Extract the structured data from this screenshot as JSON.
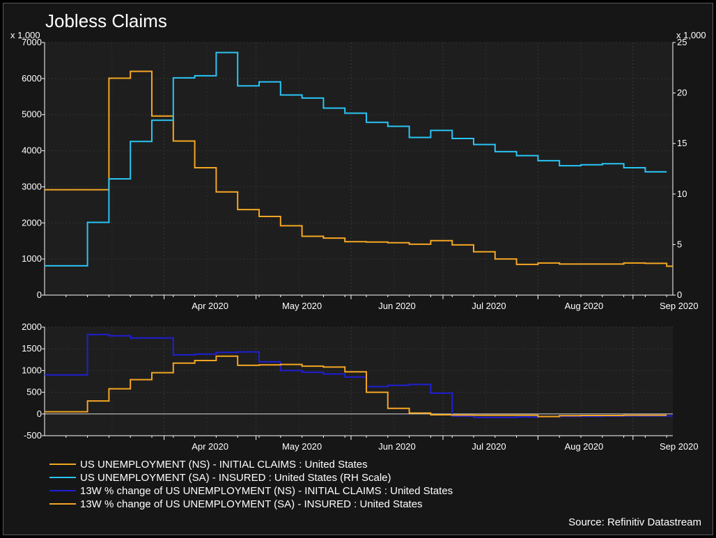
{
  "chart_data": [
    {
      "type": "line",
      "title": "Jobless Claims",
      "y_unit_left": "x 1,000",
      "y_unit_right": "x 1,000",
      "ylim_left": [
        0,
        7000
      ],
      "ylim_right": [
        0,
        25
      ],
      "yticks_left": [
        "0",
        "1000",
        "2000",
        "3000",
        "4000",
        "5000",
        "6000",
        "7000"
      ],
      "yticks_right": [
        "0",
        "5",
        "10",
        "15",
        "20",
        "25"
      ],
      "x_tick_labels": [
        "Apr 2020",
        "May 2020",
        "Jun 2020",
        "Jul 2020",
        "Aug 2020",
        "Sep 2020"
      ],
      "x_tick_dates": [
        "2020-04-01",
        "2020-05-01",
        "2020-06-01",
        "2020-07-01",
        "2020-08-01",
        "2020-09-01"
      ],
      "x_range": [
        "2020-02-22",
        "2020-09-14"
      ],
      "grid": true,
      "series": [
        {
          "name": "US UNEMPLOYMENT (NS) - INITIAL CLAIMS : United States",
          "axis": "left",
          "color": "#f5a623",
          "step": true,
          "x": [
            "2020-02-22",
            "2020-03-14",
            "2020-03-21",
            "2020-03-28",
            "2020-04-04",
            "2020-04-11",
            "2020-04-18",
            "2020-04-25",
            "2020-05-02",
            "2020-05-09",
            "2020-05-16",
            "2020-05-23",
            "2020-05-30",
            "2020-06-06",
            "2020-06-13",
            "2020-06-20",
            "2020-06-27",
            "2020-07-04",
            "2020-07-11",
            "2020-07-18",
            "2020-07-25",
            "2020-08-01",
            "2020-08-08",
            "2020-08-15",
            "2020-08-22",
            "2020-08-29",
            "2020-09-05",
            "2020-09-12"
          ],
          "values": [
            2920,
            6010,
            6200,
            4960,
            4270,
            3530,
            2860,
            2370,
            2180,
            1920,
            1630,
            1580,
            1480,
            1470,
            1450,
            1410,
            1510,
            1390,
            1200,
            1000,
            850,
            890,
            860,
            860,
            860,
            890,
            880,
            800
          ]
        },
        {
          "name": "US UNEMPLOYMENT (SA) - INSURED : United States (RH Scale)",
          "axis": "right",
          "color": "#29c5f6",
          "step": true,
          "x": [
            "2020-02-22",
            "2020-03-07",
            "2020-03-14",
            "2020-03-21",
            "2020-03-28",
            "2020-04-04",
            "2020-04-11",
            "2020-04-18",
            "2020-04-25",
            "2020-05-02",
            "2020-05-09",
            "2020-05-16",
            "2020-05-23",
            "2020-05-30",
            "2020-06-06",
            "2020-06-13",
            "2020-06-20",
            "2020-06-27",
            "2020-07-04",
            "2020-07-11",
            "2020-07-18",
            "2020-07-25",
            "2020-08-01",
            "2020-08-08",
            "2020-08-15",
            "2020-08-22",
            "2020-08-29",
            "2020-09-05"
          ],
          "values": [
            2.9,
            7.2,
            11.5,
            15.2,
            17.3,
            21.5,
            21.7,
            24.0,
            20.7,
            21.1,
            19.8,
            19.5,
            18.5,
            18.0,
            17.1,
            16.7,
            15.6,
            16.3,
            15.5,
            14.9,
            14.2,
            13.8,
            13.3,
            12.8,
            12.9,
            13.0,
            12.6,
            12.2
          ]
        }
      ]
    },
    {
      "type": "line",
      "ylim": [
        -500,
        2000
      ],
      "yticks": [
        "-500",
        "0",
        "500",
        "1000",
        "1500",
        "2000"
      ],
      "x_tick_labels": [
        "Apr 2020",
        "May 2020",
        "Jun 2020",
        "Jul 2020",
        "Aug 2020",
        "Sep 2020"
      ],
      "x_tick_dates": [
        "2020-04-01",
        "2020-05-01",
        "2020-06-01",
        "2020-07-01",
        "2020-08-01",
        "2020-09-01"
      ],
      "x_range": [
        "2020-02-22",
        "2020-09-14"
      ],
      "grid": true,
      "zero_line": true,
      "series": [
        {
          "name": "13W % change of US UNEMPLOYMENT (NS) - INITIAL CLAIMS : United States",
          "color": "#1f1fd6",
          "step": true,
          "x": [
            "2020-02-22",
            "2020-03-07",
            "2020-03-14",
            "2020-03-21",
            "2020-04-04",
            "2020-04-11",
            "2020-04-18",
            "2020-04-25",
            "2020-05-02",
            "2020-05-09",
            "2020-05-16",
            "2020-05-23",
            "2020-05-30",
            "2020-06-06",
            "2020-06-13",
            "2020-06-20",
            "2020-06-27",
            "2020-07-04",
            "2020-07-11",
            "2020-07-18",
            "2020-07-25",
            "2020-08-01",
            "2020-08-08",
            "2020-08-15",
            "2020-08-22",
            "2020-08-29",
            "2020-09-05",
            "2020-09-12"
          ],
          "values": [
            900,
            1830,
            1800,
            1750,
            1360,
            1380,
            1420,
            1430,
            1200,
            1000,
            960,
            920,
            850,
            630,
            660,
            680,
            480,
            -50,
            -80,
            -80,
            -70,
            -60,
            -55,
            -55,
            -50,
            -45,
            -45,
            -45
          ]
        },
        {
          "name": "13W % change of US UNEMPLOYMENT (SA) - INSURED : United States",
          "color": "#f5a623",
          "step": true,
          "x": [
            "2020-02-22",
            "2020-03-07",
            "2020-03-14",
            "2020-03-21",
            "2020-03-28",
            "2020-04-04",
            "2020-04-11",
            "2020-04-18",
            "2020-04-25",
            "2020-05-02",
            "2020-05-09",
            "2020-05-16",
            "2020-05-23",
            "2020-05-30",
            "2020-06-06",
            "2020-06-13",
            "2020-06-20",
            "2020-06-27",
            "2020-07-04",
            "2020-07-11",
            "2020-07-18",
            "2020-07-25",
            "2020-08-01",
            "2020-08-08",
            "2020-08-15",
            "2020-08-22",
            "2020-08-29",
            "2020-09-05"
          ],
          "values": [
            50,
            300,
            580,
            790,
            950,
            1170,
            1230,
            1330,
            1120,
            1130,
            1140,
            1100,
            1080,
            970,
            500,
            130,
            20,
            -20,
            -25,
            -30,
            -30,
            -30,
            -60,
            -40,
            -35,
            -35,
            -30,
            -30
          ]
        }
      ]
    }
  ],
  "source": "Source: Refinitiv Datastream"
}
